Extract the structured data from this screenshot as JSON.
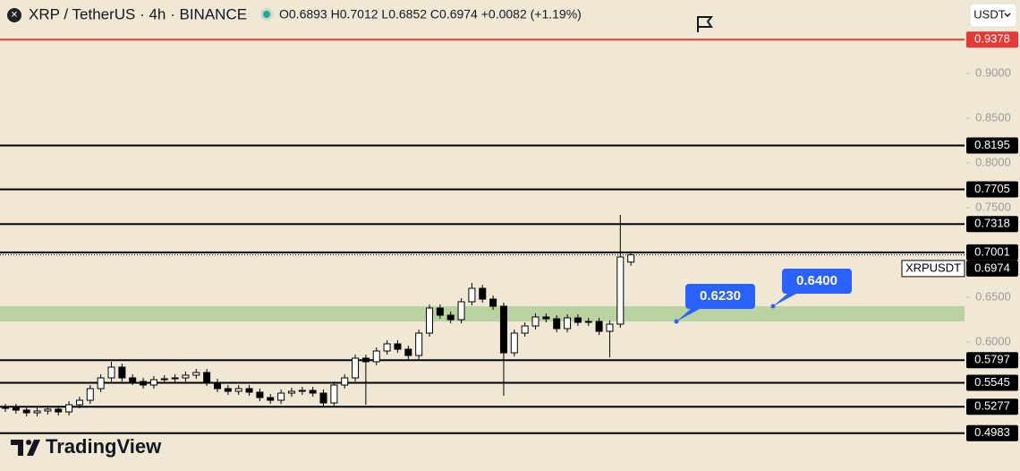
{
  "header": {
    "symbol": "XRP / TetherUS · 4h · BINANCE",
    "ohlc": "O0.6893 H0.7012 L0.6852 C0.6974 +0.0082 (+1.19%)",
    "currency": "USDT",
    "brand": "TradingView"
  },
  "chart_data": {
    "type": "candlestick",
    "ylim": [
      0.456,
      0.982
    ],
    "yticks": [
      {
        "value": 0.6,
        "label": "0.6000"
      },
      {
        "value": 0.65,
        "label": "0.6500"
      },
      {
        "value": 0.75,
        "label": "0.7500"
      },
      {
        "value": 0.8,
        "label": "0.8000"
      },
      {
        "value": 0.85,
        "label": "0.8500"
      },
      {
        "value": 0.9,
        "label": "0.9000"
      }
    ],
    "grid": false,
    "up_color": "#ffffff",
    "down_color": "#000000",
    "open": [
      0.526,
      0.527,
      0.524,
      0.521,
      0.523,
      0.525,
      0.522,
      0.53,
      0.535,
      0.548,
      0.56,
      0.572,
      0.56,
      0.556,
      0.552,
      0.558,
      0.559,
      0.56,
      0.563,
      0.566,
      0.555,
      0.548,
      0.545,
      0.548,
      0.544,
      0.538,
      0.535,
      0.543,
      0.545,
      0.546,
      0.543,
      0.532,
      0.552,
      0.56,
      0.582,
      0.578,
      0.59,
      0.598,
      0.592,
      0.585,
      0.61,
      0.638,
      0.63,
      0.625,
      0.645,
      0.66,
      0.648,
      0.64,
      0.588,
      0.61,
      0.618,
      0.628,
      0.626,
      0.615,
      0.627,
      0.622,
      0.623,
      0.612,
      0.62,
      0.6893
    ],
    "high": [
      0.531,
      0.531,
      0.528,
      0.527,
      0.529,
      0.529,
      0.534,
      0.539,
      0.552,
      0.564,
      0.578,
      0.576,
      0.564,
      0.56,
      0.562,
      0.563,
      0.564,
      0.567,
      0.57,
      0.57,
      0.559,
      0.552,
      0.552,
      0.552,
      0.548,
      0.542,
      0.547,
      0.549,
      0.55,
      0.55,
      0.547,
      0.556,
      0.564,
      0.586,
      0.586,
      0.594,
      0.602,
      0.602,
      0.596,
      0.614,
      0.642,
      0.642,
      0.634,
      0.649,
      0.666,
      0.664,
      0.652,
      0.644,
      0.614,
      0.622,
      0.632,
      0.632,
      0.63,
      0.631,
      0.631,
      0.627,
      0.627,
      0.624,
      0.742,
      0.7012
    ],
    "low": [
      0.522,
      0.52,
      0.517,
      0.517,
      0.519,
      0.518,
      0.518,
      0.526,
      0.531,
      0.544,
      0.556,
      0.556,
      0.552,
      0.548,
      0.548,
      0.554,
      0.555,
      0.556,
      0.559,
      0.551,
      0.544,
      0.541,
      0.541,
      0.54,
      0.534,
      0.531,
      0.531,
      0.539,
      0.541,
      0.539,
      0.527,
      0.528,
      0.548,
      0.556,
      0.53,
      0.574,
      0.586,
      0.588,
      0.581,
      0.581,
      0.606,
      0.626,
      0.621,
      0.621,
      0.641,
      0.644,
      0.636,
      0.54,
      0.584,
      0.606,
      0.614,
      0.622,
      0.611,
      0.611,
      0.618,
      0.618,
      0.608,
      0.583,
      0.616,
      0.6852
    ],
    "close": [
      0.527,
      0.524,
      0.521,
      0.523,
      0.525,
      0.522,
      0.53,
      0.535,
      0.548,
      0.56,
      0.572,
      0.56,
      0.556,
      0.552,
      0.558,
      0.559,
      0.56,
      0.563,
      0.566,
      0.555,
      0.548,
      0.545,
      0.548,
      0.544,
      0.538,
      0.535,
      0.543,
      0.545,
      0.546,
      0.543,
      0.532,
      0.552,
      0.56,
      0.582,
      0.578,
      0.59,
      0.598,
      0.592,
      0.585,
      0.61,
      0.638,
      0.63,
      0.625,
      0.645,
      0.66,
      0.648,
      0.64,
      0.588,
      0.61,
      0.618,
      0.628,
      0.626,
      0.615,
      0.627,
      0.622,
      0.623,
      0.612,
      0.62,
      0.695,
      0.6974
    ],
    "levels": [
      {
        "value": 0.9378,
        "label": "0.9378",
        "color": "#e53935"
      },
      {
        "value": 0.8195,
        "label": "0.8195",
        "color": "#000000"
      },
      {
        "value": 0.7705,
        "label": "0.7705",
        "color": "#000000"
      },
      {
        "value": 0.7318,
        "label": "0.7318",
        "color": "#000000"
      },
      {
        "value": 0.7001,
        "label": "0.7001",
        "color": "#000000"
      },
      {
        "value": 0.5797,
        "label": "0.5797",
        "color": "#000000"
      },
      {
        "value": 0.5545,
        "label": "0.5545",
        "color": "#000000"
      },
      {
        "value": 0.5277,
        "label": "0.5277",
        "color": "#000000"
      },
      {
        "value": 0.4983,
        "label": "0.4983",
        "color": "#000000"
      }
    ],
    "current_price": {
      "value": 0.6974,
      "label": "0.6974",
      "name": "XRPUSDT"
    },
    "zone_color": "#b9d3a0",
    "callouts": [
      {
        "value": 0.623,
        "label": "0.6230"
      },
      {
        "value": 0.64,
        "label": "0.6400"
      }
    ],
    "callout_color": "#2962ff"
  }
}
